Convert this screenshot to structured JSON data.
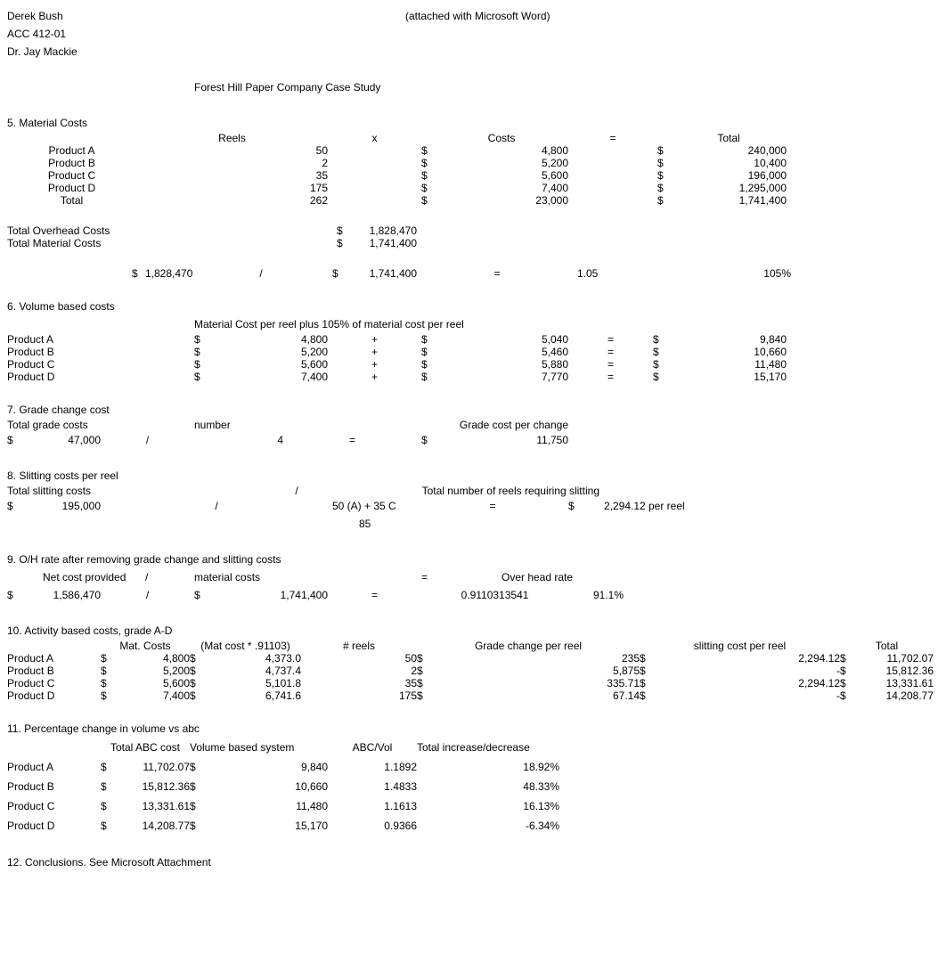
{
  "header": {
    "name": "Derek Bush",
    "course": "ACC 412-01",
    "prof": "Dr. Jay Mackie",
    "attached": "(attached with Microsoft Word)",
    "title": "Forest Hill Paper Company Case Study"
  },
  "s5": {
    "heading": "5.  Material Costs",
    "cols": {
      "reels": "Reels",
      "x": "x",
      "costs": "Costs",
      "eq": "=",
      "total": "Total"
    },
    "rows": [
      {
        "label": "Product A",
        "reels": "50",
        "cost": "4,800",
        "total": "240,000"
      },
      {
        "label": "Product B",
        "reels": "2",
        "cost": "5,200",
        "total": "10,400"
      },
      {
        "label": "Product C",
        "reels": "35",
        "cost": "5,600",
        "total": "196,000"
      },
      {
        "label": "Product D",
        "reels": "175",
        "cost": "7,400",
        "total": "1,295,000"
      },
      {
        "label": "Total",
        "reels": "262",
        "cost": "23,000",
        "total": "1,741,400"
      }
    ],
    "overhead_label": "Total Overhead Costs",
    "overhead_val": "1,828,470",
    "material_label": "Total Material Costs",
    "material_val": "1,741,400",
    "ratio_v1": "1,828,470",
    "ratio_slash": "/",
    "ratio_v2": "1,741,400",
    "ratio_eq": "=",
    "ratio_r1": "1.05",
    "ratio_r2": "105%"
  },
  "s6": {
    "heading": "6. Volume based costs",
    "sub": "Material Cost per reel plus 105% of material cost per reel",
    "rows": [
      {
        "label": "Product A",
        "v1": "4,800",
        "v2": "5,040",
        "v3": "9,840"
      },
      {
        "label": "Product B",
        "v1": "5,200",
        "v2": "5,460",
        "v3": "10,660"
      },
      {
        "label": "Product C",
        "v1": "5,600",
        "v2": "5,880",
        "v3": "11,480"
      },
      {
        "label": "Product D",
        "v1": "7,400",
        "v2": "7,770",
        "v3": "15,170"
      }
    ]
  },
  "s7": {
    "heading": "7. Grade change cost",
    "h1": "Total grade costs",
    "h2": "number",
    "h3": "Grade cost per change",
    "v1": "47,000",
    "slash": "/",
    "v2": "4",
    "eq": "=",
    "v3": "11,750"
  },
  "s8": {
    "heading": "8. Slitting costs per reel",
    "h1": "Total slitting costs",
    "h2": "/",
    "h3": "Total number of reels requiring slitting",
    "v1": "195,000",
    "slash": "/",
    "formula": "50 (A) + 35 C",
    "eq": "=",
    "result": "2,294.12",
    "per": "per reel",
    "sum": "85"
  },
  "s9": {
    "heading": "9.  O/H rate after removing grade change and slitting costs",
    "h1": "Net cost provided",
    "h2": "/",
    "h3": "material costs",
    "h4": "=",
    "h5": "Over head rate",
    "v1": "1,586,470",
    "slash": "/",
    "v2": "1,741,400",
    "eq": "=",
    "r1": "0.9110313541",
    "r2": "91.1%"
  },
  "s10": {
    "heading": "10.  Activity based costs, grade A-D",
    "cols": {
      "mat": "Mat. Costs",
      "matcalc": "(Mat cost * .91103)",
      "reels": "# reels",
      "grade": "Grade change per reel",
      "slit": "slitting cost per reel",
      "total": "Total"
    },
    "rows": [
      {
        "label": "Product A",
        "v1": "4,800",
        "v2": "4,373.0",
        "v3": "50",
        "v4": "235",
        "v5": "2,294.12",
        "v6": "11,702.07"
      },
      {
        "label": "Product B",
        "v1": "5,200",
        "v2": "4,737.4",
        "v3": "2",
        "v4": "5,875",
        "v5": "-",
        "v6": "15,812.36"
      },
      {
        "label": "Product C",
        "v1": "5,600",
        "v2": "5,101.8",
        "v3": "35",
        "v4": "335.71",
        "v5": "2,294.12",
        "v6": "13,331.61"
      },
      {
        "label": "Product D",
        "v1": "7,400",
        "v2": "6,741.6",
        "v3": "175",
        "v4": "67.14",
        "v5": "-",
        "v6": "14,208.77"
      }
    ]
  },
  "s11": {
    "heading": "11.  Percentage change in volume vs abc",
    "cols": {
      "abc": "Total ABC cost",
      "vol": "Volume based system",
      "ratio": "ABC/Vol",
      "delta": "Total increase/decrease"
    },
    "rows": [
      {
        "label": "Product A",
        "v1": "11,702.07",
        "v2": "9,840",
        "v3": "1.1892",
        "v4": "18.92%"
      },
      {
        "label": "Product B",
        "v1": "15,812.36",
        "v2": "10,660",
        "v3": "1.4833",
        "v4": "48.33%"
      },
      {
        "label": "Product C",
        "v1": "13,331.61",
        "v2": "11,480",
        "v3": "1.1613",
        "v4": "16.13%"
      },
      {
        "label": "Product D",
        "v1": "14,208.77",
        "v2": "15,170",
        "v3": "0.9366",
        "v4": "-6.34%"
      }
    ]
  },
  "s12": {
    "text": "12. Conclusions. See Microsoft Attachment"
  },
  "sym": {
    "dollar": "$",
    "plus": "+",
    "eq": "="
  }
}
